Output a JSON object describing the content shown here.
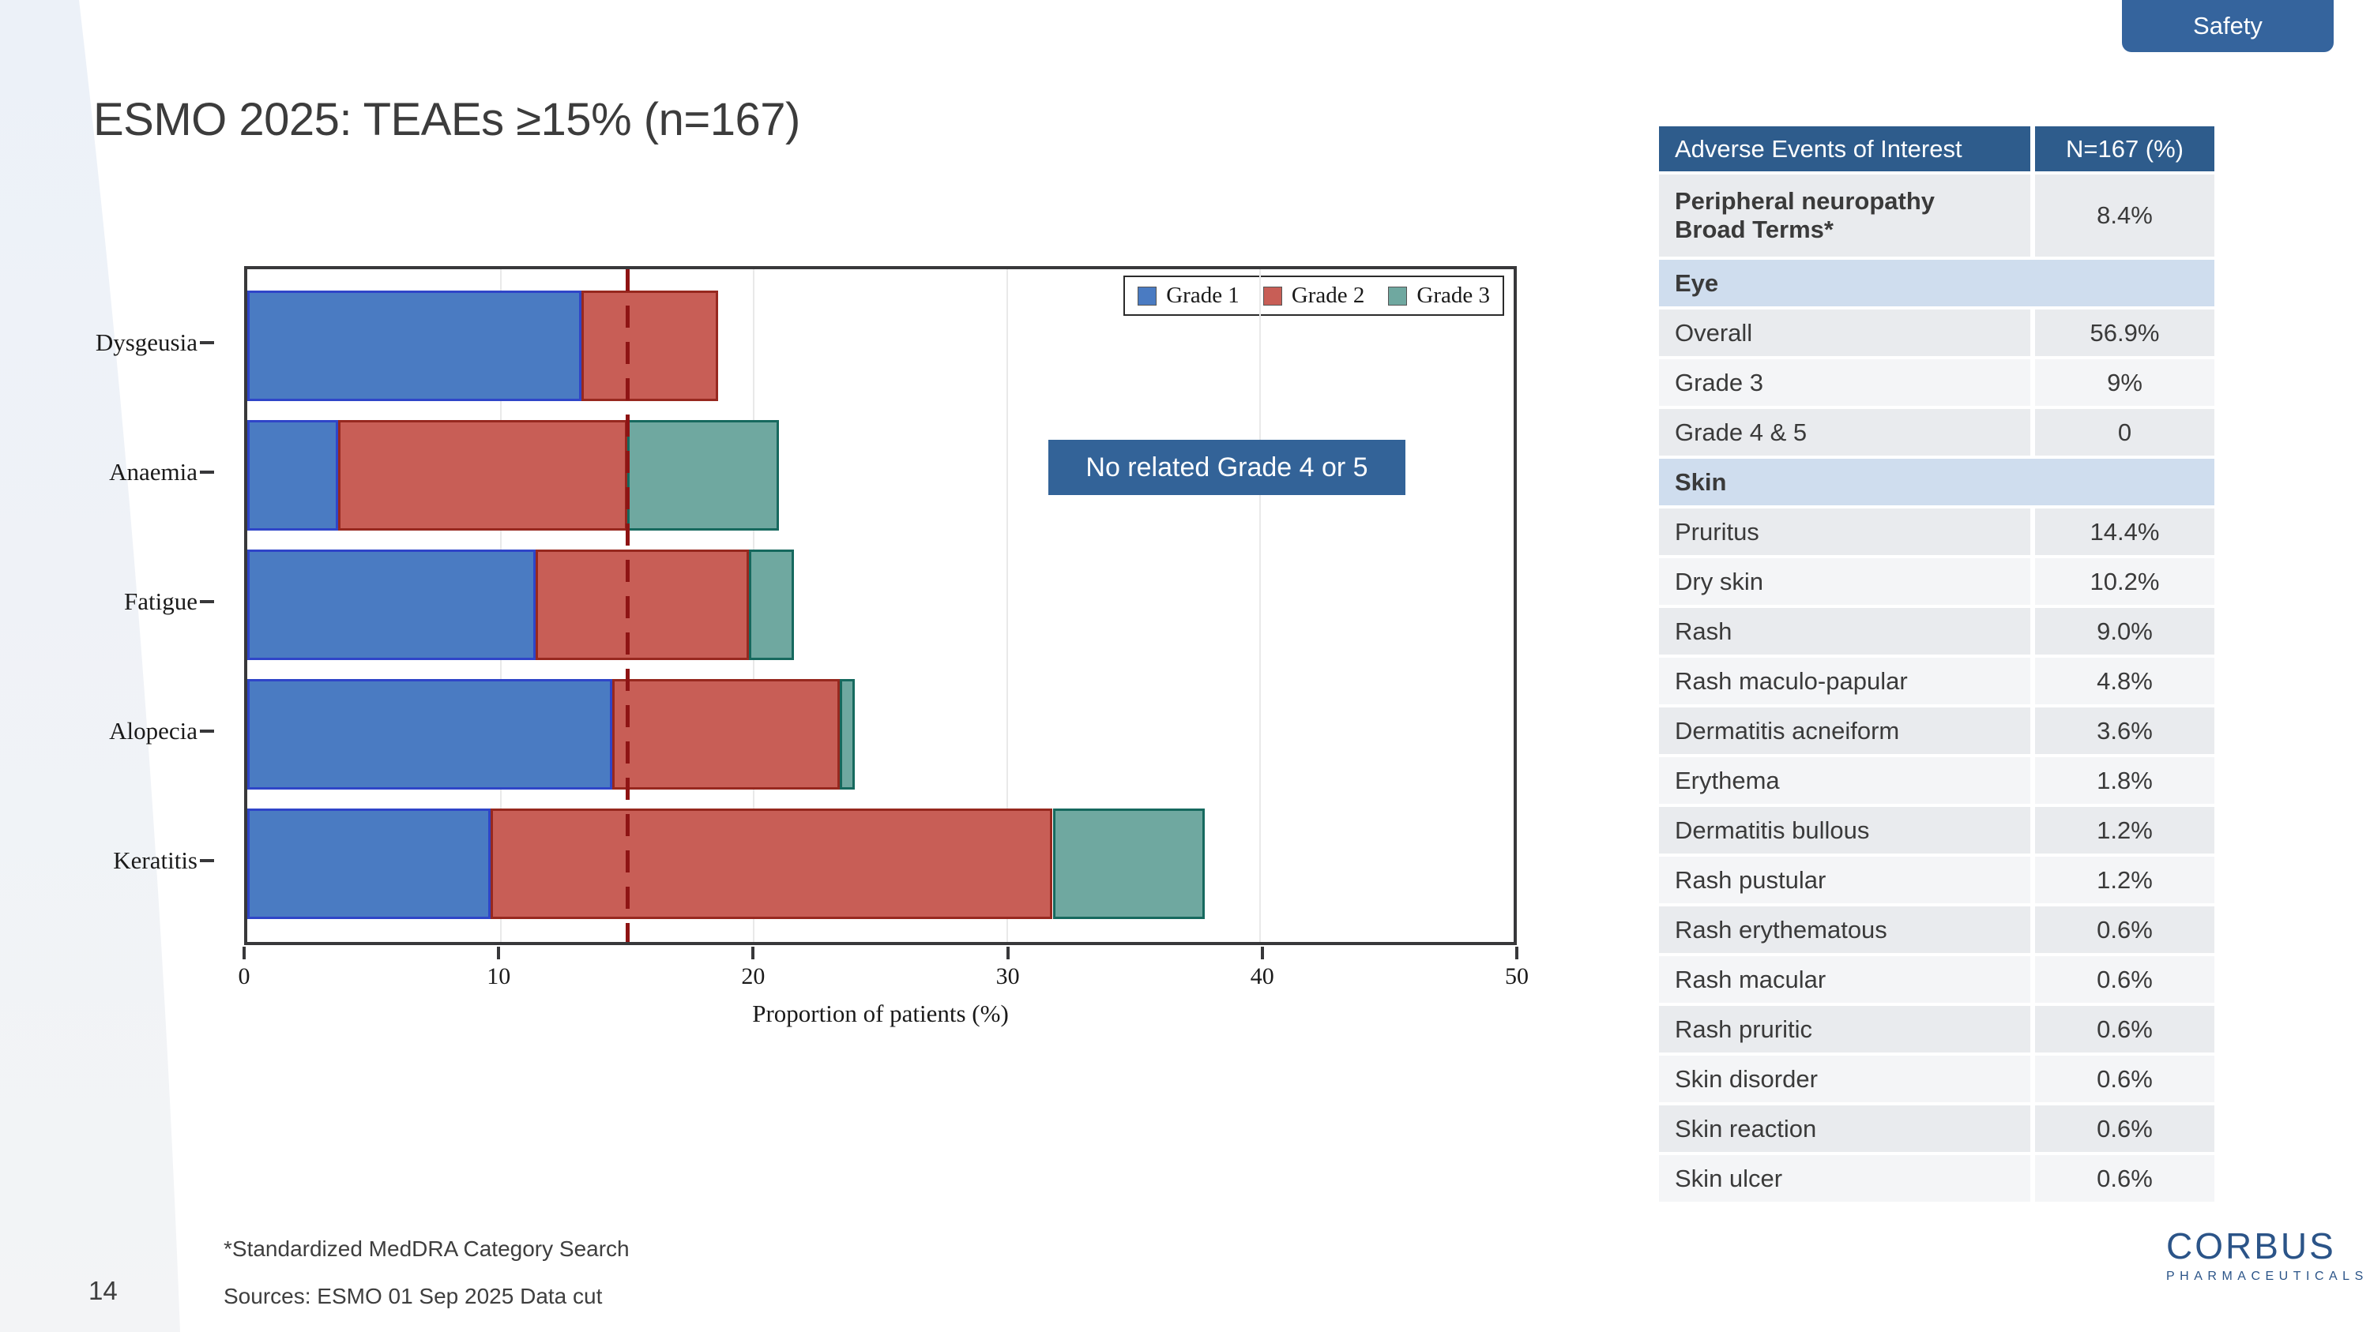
{
  "slide": {
    "badge": "Safety",
    "title": "ESMO 2025: TEAEs ≥15% (n=167)",
    "page_number": "14",
    "footnotes": [
      "*Standardized MedDRA Category Search",
      "Sources: ESMO 01 Sep 2025 Data cut"
    ]
  },
  "annotation": {
    "text": "No related Grade 4 or 5",
    "bg": "#336398"
  },
  "chart_data": {
    "type": "bar",
    "orientation": "horizontal",
    "stacked": true,
    "categories": [
      "Dysgeusia",
      "Anaemia",
      "Fatigue",
      "Alopecia",
      "Keratitis"
    ],
    "series": [
      {
        "name": "Grade 1",
        "color": "#4a7bc2",
        "border_color": "#2f45c8",
        "values": [
          13.2,
          3.6,
          11.4,
          14.4,
          9.6
        ]
      },
      {
        "name": "Grade 2",
        "color": "#c85e56",
        "border_color": "#97281f",
        "values": [
          5.4,
          11.4,
          8.4,
          9.0,
          22.2
        ]
      },
      {
        "name": "Grade 3",
        "color": "#6fa8a0",
        "border_color": "#16695e",
        "values": [
          0,
          6.0,
          1.8,
          0.6,
          6.0
        ]
      }
    ],
    "xlabel": "Proportion of patients (%)",
    "xlim": [
      0,
      50
    ],
    "xticks": [
      0,
      10,
      20,
      30,
      40,
      50
    ],
    "grid": true,
    "legend_position": "top-right",
    "reference_line": {
      "value": 15,
      "color": "#8e1414",
      "style": "dashed"
    }
  },
  "table": {
    "headers": [
      "Adverse Events of Interest",
      "N=167 (%)"
    ],
    "header_bg": "#2e5c8c",
    "section_bg": "#cfddee",
    "row_shades": {
      "gray": "#e9ebee",
      "light": "#f4f5f7"
    },
    "rows": [
      {
        "label": [
          "Peripheral neuropathy",
          "Broad Terms*"
        ],
        "value": "8.4%",
        "type": "data",
        "tall": true,
        "bold": true,
        "shade": "gray"
      },
      {
        "label": "Eye",
        "type": "section"
      },
      {
        "label": "Overall",
        "value": "56.9%",
        "type": "data",
        "shade": "gray"
      },
      {
        "label": "Grade 3",
        "value": "9%",
        "type": "data",
        "shade": "light"
      },
      {
        "label": "Grade 4 & 5",
        "value": "0",
        "type": "data",
        "shade": "gray"
      },
      {
        "label": "Skin",
        "type": "section"
      },
      {
        "label": "Pruritus",
        "value": "14.4%",
        "type": "data",
        "shade": "gray"
      },
      {
        "label": "Dry skin",
        "value": "10.2%",
        "type": "data",
        "shade": "light"
      },
      {
        "label": "Rash",
        "value": "9.0%",
        "type": "data",
        "shade": "gray"
      },
      {
        "label": "Rash maculo-papular",
        "value": "4.8%",
        "type": "data",
        "shade": "light"
      },
      {
        "label": "Dermatitis acneiform",
        "value": "3.6%",
        "type": "data",
        "shade": "gray"
      },
      {
        "label": "Erythema",
        "value": "1.8%",
        "type": "data",
        "shade": "light"
      },
      {
        "label": "Dermatitis bullous",
        "value": "1.2%",
        "type": "data",
        "shade": "gray"
      },
      {
        "label": "Rash pustular",
        "value": "1.2%",
        "type": "data",
        "shade": "light"
      },
      {
        "label": "Rash erythematous",
        "value": "0.6%",
        "type": "data",
        "shade": "gray"
      },
      {
        "label": "Rash macular",
        "value": "0.6%",
        "type": "data",
        "shade": "light"
      },
      {
        "label": "Rash pruritic",
        "value": "0.6%",
        "type": "data",
        "shade": "gray"
      },
      {
        "label": "Skin disorder",
        "value": "0.6%",
        "type": "data",
        "shade": "light"
      },
      {
        "label": "Skin reaction",
        "value": "0.6%",
        "type": "data",
        "shade": "gray"
      },
      {
        "label": "Skin ulcer",
        "value": "0.6%",
        "type": "data",
        "shade": "light"
      }
    ]
  },
  "logo": {
    "name": "CORBUS",
    "subtitle": "PHARMACEUTICALS"
  }
}
